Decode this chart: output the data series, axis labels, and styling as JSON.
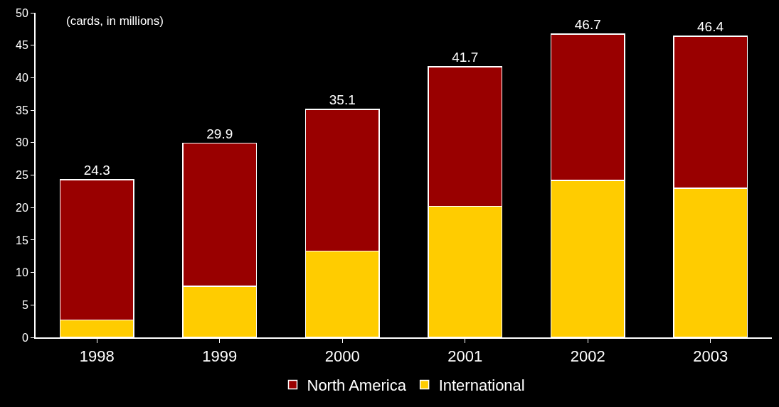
{
  "chart_data": {
    "type": "bar",
    "stacked": true,
    "annotations": [
      "(cards, in millions)"
    ],
    "categories": [
      "1998",
      "1999",
      "2000",
      "2001",
      "2002",
      "2003"
    ],
    "series": [
      {
        "name": "International",
        "color": "#ffcc00",
        "values": [
          2.7,
          7.9,
          13.3,
          20.2,
          24.2,
          23.0
        ]
      },
      {
        "name": "North America",
        "color": "#990000",
        "values": [
          21.6,
          22.0,
          21.8,
          21.5,
          22.5,
          23.4
        ]
      }
    ],
    "totals": [
      "24.3",
      "29.9",
      "35.1",
      "41.7",
      "46.7",
      "46.4"
    ],
    "ylim": [
      0,
      50
    ],
    "yticks": [
      0,
      5,
      10,
      15,
      20,
      25,
      30,
      35,
      40,
      45,
      50
    ],
    "grid": false,
    "legend": "bottom"
  }
}
